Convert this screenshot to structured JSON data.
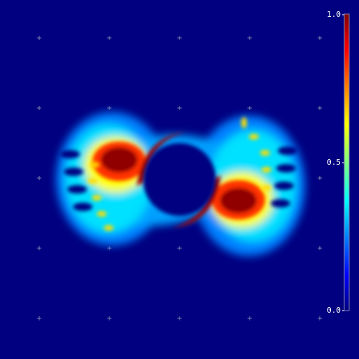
{
  "colorbar": {
    "range": [
      0,
      1
    ],
    "ticks": [
      {
        "value": 0,
        "label": "0.0"
      },
      {
        "value": 0.5,
        "label": "0.5"
      },
      {
        "value": 1,
        "label": "1.0"
      }
    ]
  }
}
